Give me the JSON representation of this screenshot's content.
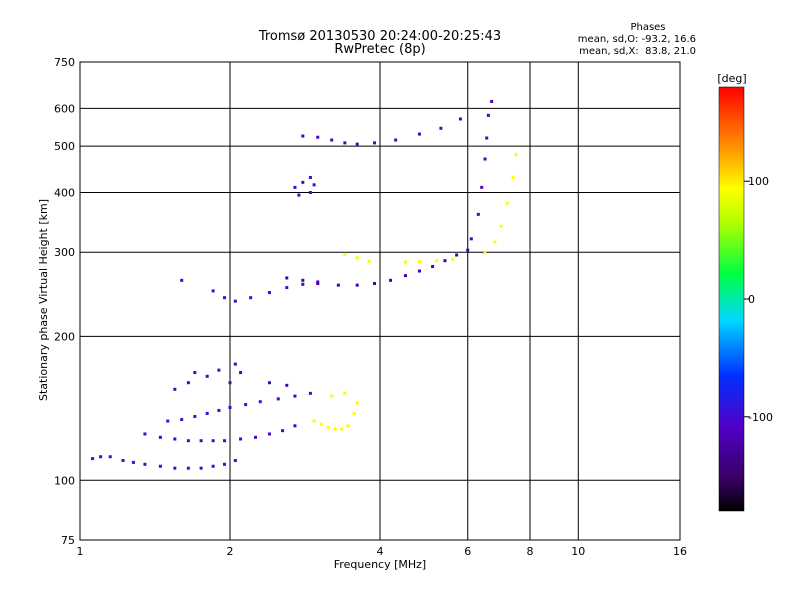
{
  "chart_data": {
    "type": "scatter",
    "title": "Tromsø 20130530 20:24:00-20:25:43",
    "subtitle": "RwPretec (8p)",
    "xlabel": "Frequency [MHz]",
    "ylabel": "Stationary phase Virtual Height [km]",
    "x_scale": "log",
    "y_scale": "log",
    "xlim": [
      1,
      16
    ],
    "ylim": [
      75,
      750
    ],
    "xticks": [
      1,
      2,
      4,
      6,
      8,
      10,
      16
    ],
    "xtick_labels": [
      "1",
      "2",
      "4",
      "6",
      "8",
      "10",
      "16"
    ],
    "yticks": [
      75,
      100,
      200,
      300,
      400,
      500,
      600,
      750
    ],
    "ytick_labels": [
      "75",
      "100",
      "200",
      "300",
      "400",
      "500",
      "600",
      "750"
    ],
    "grid": true,
    "stats": {
      "header": "Phases",
      "line_o": "mean, sd,O: -93.2, 16.6",
      "line_x": "mean, sd,X:  83.8, 21.0"
    },
    "colorbar": {
      "label": "[deg]",
      "range": [
        -180,
        180
      ],
      "ticks": [
        100,
        0,
        -100
      ],
      "tick_labels": [
        "100",
        "0",
        "-100"
      ],
      "colormap": "rainbow (black→purple→blue→cyan→green→yellow→orange→red)"
    },
    "traces": [
      {
        "name": "",
        "phase": -100,
        "points": [
          [
            1.06,
            111
          ],
          [
            1.1,
            112
          ],
          [
            1.15,
            112
          ],
          [
            1.22,
            110
          ],
          [
            1.28,
            109
          ],
          [
            1.35,
            108
          ],
          [
            1.45,
            107
          ],
          [
            1.55,
            106
          ],
          [
            1.65,
            106
          ],
          [
            1.75,
            106
          ],
          [
            1.85,
            107
          ],
          [
            1.95,
            108
          ],
          [
            2.05,
            110
          ]
        ]
      },
      {
        "name": "",
        "phase": -105,
        "points": [
          [
            1.35,
            125
          ],
          [
            1.45,
            123
          ],
          [
            1.55,
            122
          ],
          [
            1.65,
            121
          ],
          [
            1.75,
            121
          ],
          [
            1.85,
            121
          ],
          [
            1.95,
            121
          ],
          [
            2.1,
            122
          ],
          [
            2.25,
            123
          ],
          [
            2.4,
            125
          ],
          [
            2.55,
            127
          ],
          [
            2.7,
            130
          ]
        ]
      },
      {
        "name": "",
        "phase": -100,
        "points": [
          [
            1.5,
            133
          ],
          [
            1.6,
            134
          ],
          [
            1.7,
            136
          ],
          [
            1.8,
            138
          ],
          [
            1.9,
            140
          ],
          [
            2.0,
            142
          ],
          [
            2.15,
            144
          ],
          [
            2.3,
            146
          ],
          [
            2.5,
            148
          ],
          [
            2.7,
            150
          ],
          [
            2.9,
            152
          ]
        ]
      },
      {
        "name": "",
        "phase": -110,
        "points": [
          [
            1.55,
            155
          ],
          [
            1.65,
            160
          ],
          [
            1.7,
            168
          ],
          [
            1.8,
            165
          ],
          [
            1.9,
            170
          ],
          [
            2.0,
            160
          ],
          [
            2.05,
            175
          ],
          [
            2.1,
            168
          ],
          [
            2.4,
            160
          ],
          [
            2.6,
            158
          ]
        ]
      },
      {
        "name": "",
        "phase": 95,
        "points": [
          [
            2.95,
            133
          ],
          [
            3.05,
            131
          ],
          [
            3.15,
            129
          ],
          [
            3.25,
            128
          ],
          [
            3.35,
            128
          ],
          [
            3.45,
            130
          ],
          [
            3.55,
            138
          ],
          [
            3.6,
            145
          ],
          [
            3.2,
            150
          ],
          [
            3.4,
            152
          ]
        ]
      },
      {
        "name": "",
        "phase": -100,
        "points": [
          [
            1.6,
            262
          ],
          [
            1.85,
            249
          ],
          [
            1.95,
            241
          ],
          [
            2.05,
            237
          ],
          [
            2.2,
            241
          ],
          [
            2.4,
            247
          ],
          [
            2.6,
            253
          ],
          [
            2.8,
            257
          ],
          [
            3.0,
            260
          ]
        ]
      },
      {
        "name": "",
        "phase": -125,
        "points": [
          [
            2.6,
            265
          ],
          [
            2.8,
            262
          ],
          [
            3.0,
            258
          ],
          [
            3.3,
            256
          ],
          [
            3.6,
            256
          ],
          [
            3.9,
            258
          ],
          [
            4.2,
            262
          ],
          [
            4.5,
            268
          ],
          [
            4.8,
            274
          ],
          [
            5.1,
            280
          ],
          [
            5.4,
            288
          ],
          [
            5.7,
            296
          ],
          [
            6.0,
            303
          ]
        ]
      },
      {
        "name": "",
        "phase": 90,
        "points": [
          [
            3.4,
            297
          ],
          [
            3.6,
            292
          ],
          [
            3.8,
            287
          ],
          [
            4.5,
            286
          ],
          [
            4.8,
            287
          ],
          [
            5.2,
            288
          ],
          [
            5.6,
            290
          ]
        ]
      },
      {
        "name": "",
        "phase": -110,
        "points": [
          [
            6.1,
            320
          ],
          [
            6.3,
            360
          ],
          [
            6.4,
            410
          ],
          [
            6.5,
            470
          ],
          [
            6.55,
            520
          ],
          [
            6.6,
            580
          ],
          [
            6.7,
            620
          ]
        ]
      },
      {
        "name": "",
        "phase": 95,
        "points": [
          [
            6.5,
            300
          ],
          [
            6.8,
            315
          ],
          [
            7.0,
            340
          ],
          [
            7.2,
            380
          ],
          [
            7.4,
            430
          ],
          [
            7.5,
            480
          ]
        ]
      },
      {
        "name": "",
        "phase": -110,
        "points": [
          [
            2.8,
            525
          ],
          [
            3.0,
            522
          ],
          [
            3.2,
            515
          ],
          [
            3.4,
            508
          ],
          [
            3.6,
            505
          ],
          [
            3.9,
            508
          ],
          [
            4.3,
            515
          ],
          [
            4.8,
            530
          ],
          [
            5.3,
            545
          ],
          [
            5.8,
            570
          ]
        ]
      },
      {
        "name": "",
        "phase": -100,
        "points": [
          [
            2.7,
            410
          ],
          [
            2.8,
            420
          ],
          [
            2.9,
            430
          ],
          [
            2.95,
            415
          ],
          [
            2.75,
            395
          ],
          [
            2.9,
            400
          ]
        ]
      }
    ]
  }
}
